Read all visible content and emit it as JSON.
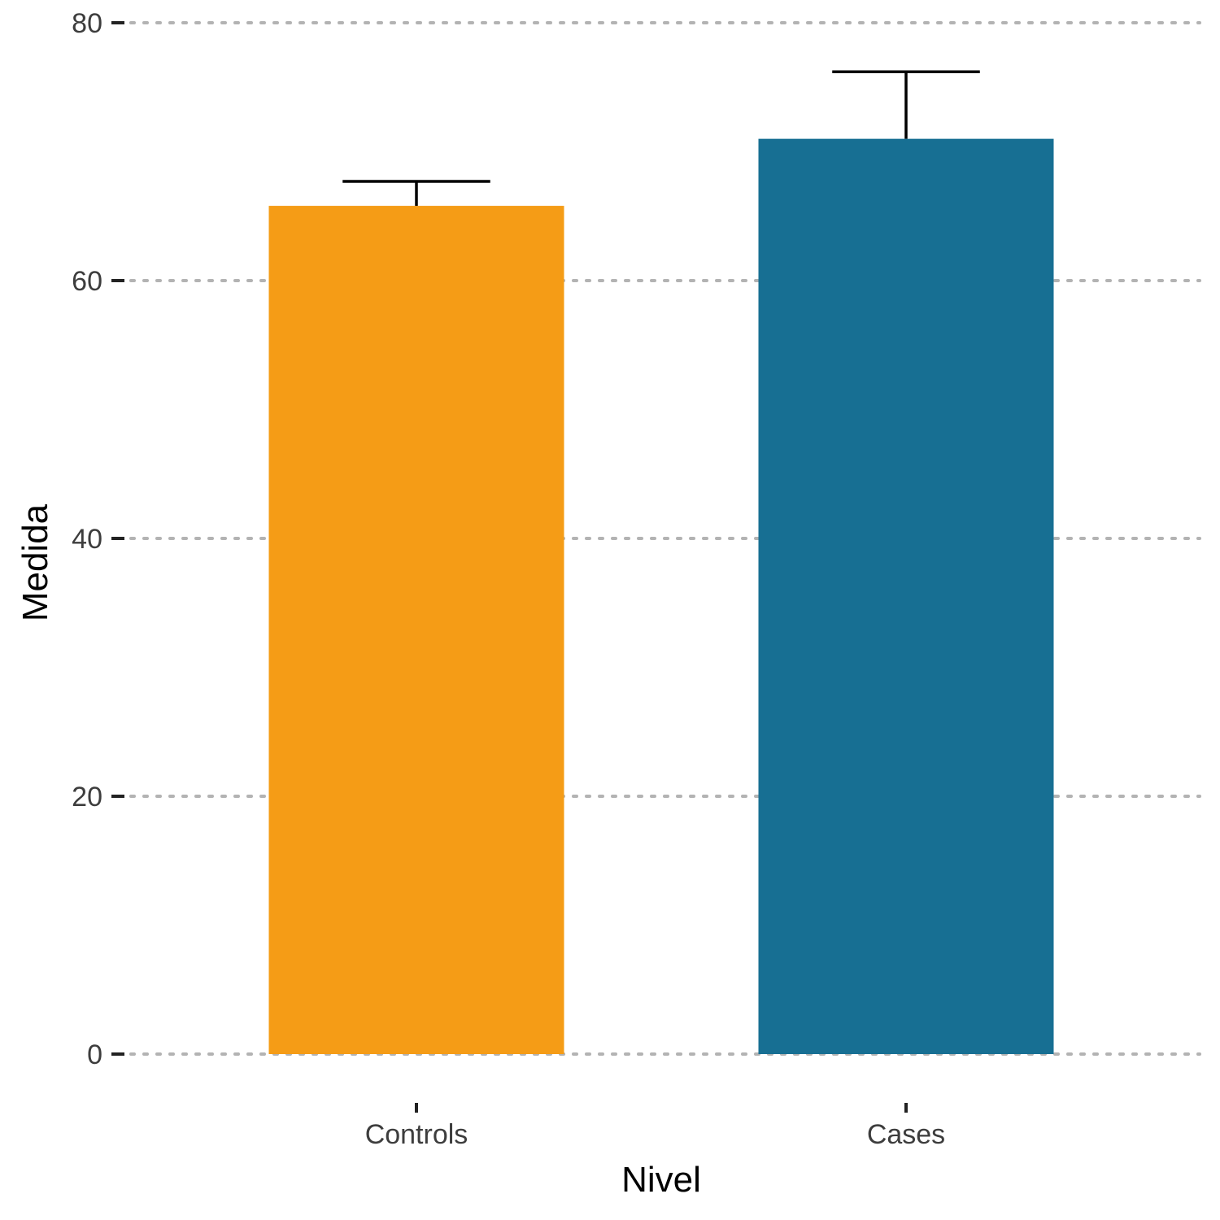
{
  "chart_data": {
    "type": "bar",
    "categories": [
      "Controls",
      "Cases"
    ],
    "values": [
      65.8,
      71.0
    ],
    "error_upper": [
      67.7,
      76.2
    ],
    "colors": [
      "#F59C16",
      "#176F93"
    ],
    "ylim": [
      0,
      80
    ],
    "yticks": [
      0,
      20,
      40,
      60,
      80
    ],
    "ytick_labels": [
      "0",
      "20",
      "40",
      "60",
      "80"
    ],
    "xlabel": "Nivel",
    "ylabel": "Medida",
    "title": "",
    "grid": "horizontal dotted",
    "legend": "none"
  }
}
